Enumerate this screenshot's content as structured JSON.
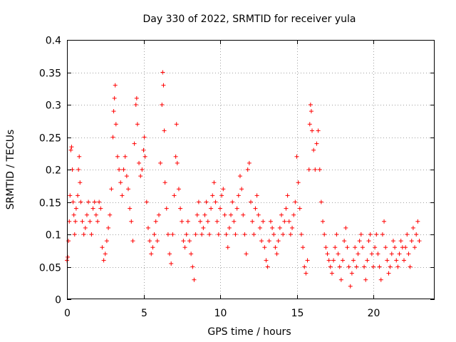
{
  "chart_data": {
    "type": "scatter",
    "title": "Day 330 of 2022, SRMTID for receiver yula",
    "xlabel": "GPS time / hours",
    "ylabel": "SRMTID / TECUs",
    "xlim": [
      0,
      24
    ],
    "ylim": [
      0,
      0.4
    ],
    "x_ticks": [
      0,
      5,
      10,
      15,
      20
    ],
    "y_ticks": [
      0,
      0.05,
      0.1,
      0.15,
      0.2,
      0.25,
      0.3,
      0.35,
      0.4
    ],
    "x_tick_labels": [
      "0",
      "5",
      "10",
      "15",
      "20"
    ],
    "y_tick_labels": [
      "0",
      "0.05",
      "0.1",
      "0.15",
      "0.2",
      "0.25",
      "0.3",
      "0.35",
      "0.4"
    ],
    "grid": true,
    "marker": "+",
    "marker_color": "#ff0000",
    "series": [
      {
        "name": "SRMTID",
        "points": [
          [
            0.0,
            0.06
          ],
          [
            0.05,
            0.065
          ],
          [
            0.1,
            0.09
          ],
          [
            0.15,
            0.12
          ],
          [
            0.2,
            0.16
          ],
          [
            0.25,
            0.23
          ],
          [
            0.3,
            0.235
          ],
          [
            0.35,
            0.2
          ],
          [
            0.4,
            0.15
          ],
          [
            0.45,
            0.13
          ],
          [
            0.5,
            0.1
          ],
          [
            0.55,
            0.12
          ],
          [
            0.6,
            0.14
          ],
          [
            0.7,
            0.16
          ],
          [
            0.75,
            0.2
          ],
          [
            0.8,
            0.22
          ],
          [
            0.85,
            0.18
          ],
          [
            0.9,
            0.15
          ],
          [
            1.0,
            0.12
          ],
          [
            1.1,
            0.1
          ],
          [
            1.2,
            0.11
          ],
          [
            1.3,
            0.13
          ],
          [
            1.4,
            0.15
          ],
          [
            1.5,
            0.12
          ],
          [
            1.6,
            0.1
          ],
          [
            1.7,
            0.14
          ],
          [
            1.8,
            0.15
          ],
          [
            1.9,
            0.13
          ],
          [
            2.0,
            0.12
          ],
          [
            2.1,
            0.15
          ],
          [
            2.2,
            0.14
          ],
          [
            2.3,
            0.08
          ],
          [
            2.4,
            0.06
          ],
          [
            2.5,
            0.07
          ],
          [
            2.6,
            0.09
          ],
          [
            2.7,
            0.11
          ],
          [
            2.8,
            0.13
          ],
          [
            2.9,
            0.17
          ],
          [
            3.0,
            0.25
          ],
          [
            3.05,
            0.29
          ],
          [
            3.1,
            0.31
          ],
          [
            3.15,
            0.33
          ],
          [
            3.2,
            0.27
          ],
          [
            3.3,
            0.22
          ],
          [
            3.4,
            0.2
          ],
          [
            3.5,
            0.18
          ],
          [
            3.6,
            0.16
          ],
          [
            3.7,
            0.2
          ],
          [
            3.8,
            0.22
          ],
          [
            3.9,
            0.19
          ],
          [
            4.0,
            0.17
          ],
          [
            4.1,
            0.14
          ],
          [
            4.2,
            0.12
          ],
          [
            4.3,
            0.09
          ],
          [
            4.4,
            0.24
          ],
          [
            4.5,
            0.3
          ],
          [
            4.55,
            0.31
          ],
          [
            4.6,
            0.27
          ],
          [
            4.7,
            0.21
          ],
          [
            4.8,
            0.19
          ],
          [
            4.9,
            0.2
          ],
          [
            5.0,
            0.23
          ],
          [
            5.05,
            0.25
          ],
          [
            5.1,
            0.22
          ],
          [
            5.2,
            0.15
          ],
          [
            5.3,
            0.11
          ],
          [
            5.4,
            0.09
          ],
          [
            5.5,
            0.07
          ],
          [
            5.6,
            0.08
          ],
          [
            5.7,
            0.1
          ],
          [
            5.8,
            0.12
          ],
          [
            5.9,
            0.09
          ],
          [
            6.0,
            0.13
          ],
          [
            6.1,
            0.21
          ],
          [
            6.2,
            0.3
          ],
          [
            6.25,
            0.35
          ],
          [
            6.3,
            0.33
          ],
          [
            6.35,
            0.26
          ],
          [
            6.4,
            0.18
          ],
          [
            6.5,
            0.14
          ],
          [
            6.6,
            0.1
          ],
          [
            6.7,
            0.07
          ],
          [
            6.8,
            0.055
          ],
          [
            6.9,
            0.1
          ],
          [
            7.0,
            0.16
          ],
          [
            7.1,
            0.22
          ],
          [
            7.15,
            0.27
          ],
          [
            7.2,
            0.21
          ],
          [
            7.3,
            0.17
          ],
          [
            7.4,
            0.14
          ],
          [
            7.5,
            0.12
          ],
          [
            7.6,
            0.09
          ],
          [
            7.7,
            0.08
          ],
          [
            7.8,
            0.1
          ],
          [
            7.9,
            0.12
          ],
          [
            8.0,
            0.09
          ],
          [
            8.1,
            0.07
          ],
          [
            8.2,
            0.05
          ],
          [
            8.3,
            0.03
          ],
          [
            8.4,
            0.1
          ],
          [
            8.5,
            0.13
          ],
          [
            8.6,
            0.15
          ],
          [
            8.7,
            0.12
          ],
          [
            8.8,
            0.1
          ],
          [
            8.9,
            0.11
          ],
          [
            9.0,
            0.13
          ],
          [
            9.1,
            0.15
          ],
          [
            9.2,
            0.12
          ],
          [
            9.3,
            0.1
          ],
          [
            9.4,
            0.14
          ],
          [
            9.5,
            0.16
          ],
          [
            9.6,
            0.18
          ],
          [
            9.7,
            0.15
          ],
          [
            9.8,
            0.12
          ],
          [
            9.9,
            0.1
          ],
          [
            10.0,
            0.14
          ],
          [
            10.1,
            0.16
          ],
          [
            10.2,
            0.17
          ],
          [
            10.3,
            0.13
          ],
          [
            10.4,
            0.1
          ],
          [
            10.5,
            0.08
          ],
          [
            10.6,
            0.11
          ],
          [
            10.7,
            0.13
          ],
          [
            10.8,
            0.15
          ],
          [
            10.9,
            0.12
          ],
          [
            11.0,
            0.1
          ],
          [
            11.1,
            0.14
          ],
          [
            11.2,
            0.16
          ],
          [
            11.3,
            0.19
          ],
          [
            11.4,
            0.17
          ],
          [
            11.5,
            0.13
          ],
          [
            11.6,
            0.1
          ],
          [
            11.7,
            0.07
          ],
          [
            11.8,
            0.2
          ],
          [
            11.9,
            0.21
          ],
          [
            12.0,
            0.15
          ],
          [
            12.1,
            0.12
          ],
          [
            12.2,
            0.1
          ],
          [
            12.3,
            0.14
          ],
          [
            12.4,
            0.16
          ],
          [
            12.5,
            0.13
          ],
          [
            12.6,
            0.11
          ],
          [
            12.7,
            0.09
          ],
          [
            12.8,
            0.12
          ],
          [
            12.9,
            0.08
          ],
          [
            13.0,
            0.06
          ],
          [
            13.1,
            0.05
          ],
          [
            13.2,
            0.09
          ],
          [
            13.3,
            0.12
          ],
          [
            13.4,
            0.11
          ],
          [
            13.5,
            0.1
          ],
          [
            13.6,
            0.08
          ],
          [
            13.7,
            0.07
          ],
          [
            13.8,
            0.09
          ],
          [
            13.9,
            0.11
          ],
          [
            14.0,
            0.13
          ],
          [
            14.1,
            0.1
          ],
          [
            14.2,
            0.12
          ],
          [
            14.3,
            0.14
          ],
          [
            14.4,
            0.16
          ],
          [
            14.5,
            0.12
          ],
          [
            14.6,
            0.1
          ],
          [
            14.7,
            0.11
          ],
          [
            14.8,
            0.13
          ],
          [
            14.9,
            0.15
          ],
          [
            15.0,
            0.22
          ],
          [
            15.1,
            0.18
          ],
          [
            15.2,
            0.14
          ],
          [
            15.3,
            0.1
          ],
          [
            15.4,
            0.08
          ],
          [
            15.5,
            0.05
          ],
          [
            15.6,
            0.04
          ],
          [
            15.7,
            0.06
          ],
          [
            15.8,
            0.2
          ],
          [
            15.85,
            0.27
          ],
          [
            15.9,
            0.3
          ],
          [
            15.95,
            0.29
          ],
          [
            16.0,
            0.26
          ],
          [
            16.1,
            0.23
          ],
          [
            16.2,
            0.2
          ],
          [
            16.3,
            0.24
          ],
          [
            16.4,
            0.26
          ],
          [
            16.5,
            0.2
          ],
          [
            16.6,
            0.15
          ],
          [
            16.7,
            0.12
          ],
          [
            16.8,
            0.1
          ],
          [
            16.9,
            0.08
          ],
          [
            17.0,
            0.07
          ],
          [
            17.1,
            0.06
          ],
          [
            17.2,
            0.05
          ],
          [
            17.3,
            0.04
          ],
          [
            17.4,
            0.06
          ],
          [
            17.5,
            0.08
          ],
          [
            17.6,
            0.1
          ],
          [
            17.7,
            0.07
          ],
          [
            17.8,
            0.05
          ],
          [
            17.9,
            0.03
          ],
          [
            18.0,
            0.06
          ],
          [
            18.1,
            0.09
          ],
          [
            18.2,
            0.11
          ],
          [
            18.3,
            0.08
          ],
          [
            18.4,
            0.05
          ],
          [
            18.5,
            0.02
          ],
          [
            18.6,
            0.04
          ],
          [
            18.7,
            0.06
          ],
          [
            18.8,
            0.08
          ],
          [
            18.9,
            0.05
          ],
          [
            19.0,
            0.07
          ],
          [
            19.1,
            0.09
          ],
          [
            19.2,
            0.1
          ],
          [
            19.3,
            0.08
          ],
          [
            19.4,
            0.05
          ],
          [
            19.5,
            0.03
          ],
          [
            19.6,
            0.06
          ],
          [
            19.7,
            0.09
          ],
          [
            19.8,
            0.1
          ],
          [
            19.9,
            0.07
          ],
          [
            20.0,
            0.05
          ],
          [
            20.1,
            0.08
          ],
          [
            20.2,
            0.1
          ],
          [
            20.3,
            0.07
          ],
          [
            20.4,
            0.05
          ],
          [
            20.5,
            0.03
          ],
          [
            20.6,
            0.1
          ],
          [
            20.7,
            0.12
          ],
          [
            20.8,
            0.08
          ],
          [
            20.9,
            0.06
          ],
          [
            21.0,
            0.04
          ],
          [
            21.1,
            0.05
          ],
          [
            21.2,
            0.07
          ],
          [
            21.3,
            0.09
          ],
          [
            21.4,
            0.08
          ],
          [
            21.5,
            0.06
          ],
          [
            21.6,
            0.05
          ],
          [
            21.7,
            0.07
          ],
          [
            21.8,
            0.09
          ],
          [
            21.9,
            0.08
          ],
          [
            22.0,
            0.06
          ],
          [
            22.1,
            0.08
          ],
          [
            22.2,
            0.1
          ],
          [
            22.3,
            0.07
          ],
          [
            22.4,
            0.05
          ],
          [
            22.5,
            0.09
          ],
          [
            22.6,
            0.11
          ],
          [
            22.7,
            0.08
          ],
          [
            22.8,
            0.1
          ],
          [
            22.9,
            0.12
          ],
          [
            23.0,
            0.09
          ]
        ]
      }
    ]
  }
}
